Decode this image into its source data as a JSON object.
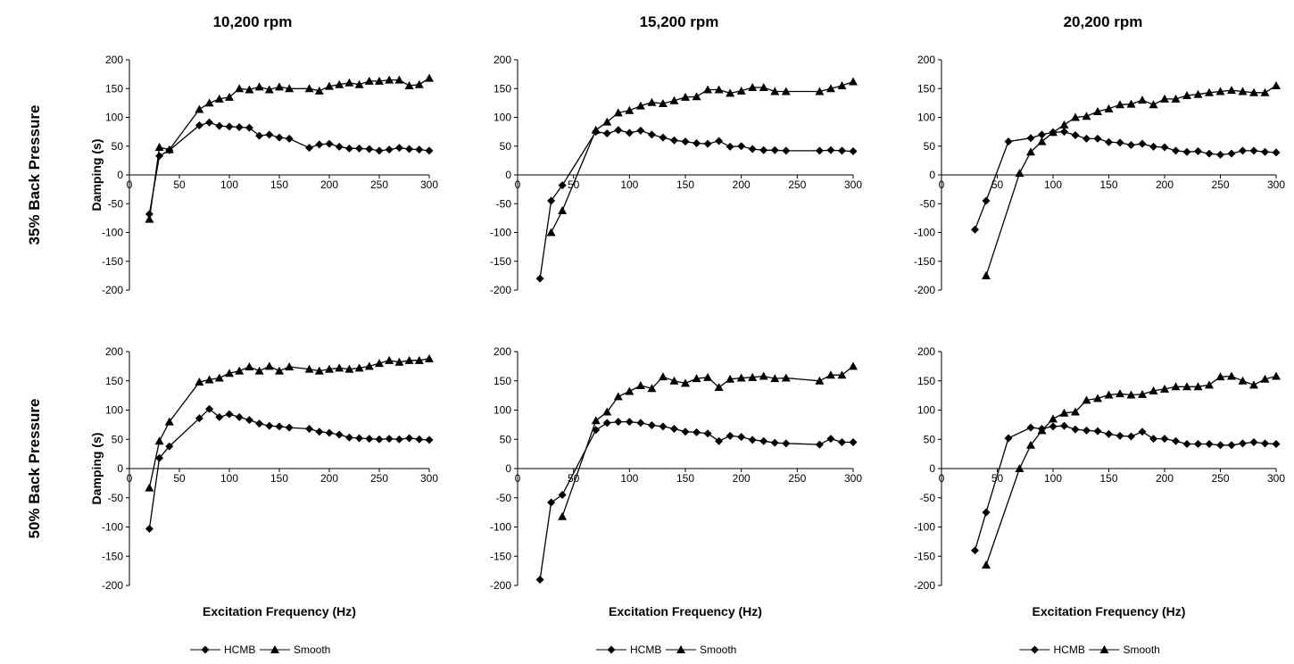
{
  "figure": {
    "column_titles": [
      "10,200 rpm",
      "15,200 rpm",
      "20,200 rpm"
    ],
    "row_titles": [
      "35% Back Pressure",
      "50% Back Pressure"
    ]
  },
  "chart_data": [
    {
      "type": "line",
      "row": 0,
      "col": 0,
      "title": "10,200 rpm",
      "xlabel": "",
      "ylabel": "Damping (s)",
      "xlim": [
        0,
        300
      ],
      "ylim": [
        -200,
        200
      ],
      "xticks": [
        0,
        50,
        100,
        150,
        200,
        250,
        300
      ],
      "yticks": [
        200,
        150,
        100,
        50,
        0,
        -50,
        -100,
        -150,
        -200
      ],
      "grid": false,
      "legend": "none",
      "series": [
        {
          "name": "HCMB",
          "marker": "diamond",
          "x": [
            20,
            30,
            40,
            70,
            80,
            90,
            100,
            110,
            120,
            130,
            140,
            150,
            160,
            180,
            190,
            200,
            210,
            220,
            230,
            240,
            250,
            260,
            270,
            280,
            290,
            300
          ],
          "y": [
            -68,
            33,
            43,
            86,
            91,
            85,
            84,
            83,
            82,
            68,
            70,
            65,
            63,
            47,
            53,
            54,
            49,
            46,
            46,
            45,
            42,
            44,
            47,
            45,
            44,
            42
          ]
        },
        {
          "name": "Smooth",
          "marker": "triangle",
          "x": [
            20,
            30,
            40,
            70,
            80,
            90,
            100,
            110,
            120,
            130,
            140,
            150,
            160,
            180,
            190,
            200,
            210,
            220,
            230,
            240,
            250,
            260,
            270,
            280,
            290,
            300
          ],
          "y": [
            -77,
            48,
            44,
            114,
            125,
            132,
            135,
            150,
            148,
            153,
            148,
            153,
            150,
            150,
            146,
            154,
            157,
            160,
            157,
            163,
            163,
            165,
            165,
            155,
            157,
            168
          ]
        }
      ]
    },
    {
      "type": "line",
      "row": 0,
      "col": 1,
      "title": "15,200 rpm",
      "xlabel": "",
      "ylabel": "",
      "xlim": [
        0,
        300
      ],
      "ylim": [
        -200,
        200
      ],
      "xticks": [
        0,
        50,
        100,
        150,
        200,
        250,
        300
      ],
      "yticks": [
        200,
        150,
        100,
        50,
        0,
        -50,
        -100,
        -150,
        -200
      ],
      "grid": false,
      "legend": "none",
      "series": [
        {
          "name": "HCMB",
          "marker": "diamond",
          "x": [
            20,
            30,
            40,
            70,
            80,
            90,
            100,
            110,
            120,
            130,
            140,
            150,
            160,
            170,
            180,
            190,
            200,
            210,
            220,
            230,
            240,
            270,
            280,
            290,
            300
          ],
          "y": [
            -180,
            -45,
            -18,
            75,
            72,
            78,
            73,
            77,
            70,
            65,
            60,
            58,
            55,
            54,
            59,
            49,
            50,
            45,
            43,
            43,
            42,
            42,
            43,
            42,
            41
          ]
        },
        {
          "name": "Smooth",
          "marker": "triangle",
          "x": [
            30,
            40,
            70,
            80,
            90,
            100,
            110,
            120,
            130,
            140,
            150,
            160,
            170,
            180,
            190,
            200,
            210,
            220,
            230,
            240,
            270,
            280,
            290,
            300
          ],
          "y": [
            -100,
            -62,
            78,
            92,
            108,
            112,
            120,
            126,
            124,
            129,
            135,
            136,
            148,
            148,
            142,
            146,
            152,
            152,
            145,
            145,
            145,
            150,
            155,
            162
          ]
        }
      ]
    },
    {
      "type": "line",
      "row": 0,
      "col": 2,
      "title": "20,200 rpm",
      "xlabel": "",
      "ylabel": "",
      "xlim": [
        0,
        300
      ],
      "ylim": [
        -200,
        200
      ],
      "xticks": [
        0,
        50,
        100,
        150,
        200,
        250,
        300
      ],
      "yticks": [
        200,
        150,
        100,
        50,
        0,
        -50,
        -100,
        -150,
        -200
      ],
      "grid": false,
      "legend": "none",
      "series": [
        {
          "name": "HCMB",
          "marker": "diamond",
          "x": [
            30,
            40,
            60,
            80,
            90,
            100,
            110,
            120,
            130,
            140,
            150,
            160,
            170,
            180,
            190,
            200,
            210,
            220,
            230,
            240,
            250,
            260,
            270,
            280,
            290,
            300
          ],
          "y": [
            -95,
            -45,
            58,
            64,
            70,
            74,
            75,
            69,
            63,
            63,
            57,
            56,
            52,
            54,
            49,
            48,
            42,
            40,
            41,
            37,
            35,
            37,
            42,
            42,
            40,
            39
          ]
        },
        {
          "name": "Smooth",
          "marker": "triangle",
          "x": [
            40,
            70,
            80,
            90,
            100,
            110,
            120,
            130,
            140,
            150,
            160,
            170,
            180,
            190,
            200,
            210,
            220,
            230,
            240,
            250,
            260,
            270,
            280,
            290,
            300
          ],
          "y": [
            -175,
            3,
            40,
            58,
            74,
            87,
            100,
            102,
            110,
            115,
            122,
            123,
            130,
            122,
            132,
            132,
            138,
            140,
            143,
            145,
            147,
            145,
            143,
            143,
            155
          ]
        }
      ]
    },
    {
      "type": "line",
      "row": 1,
      "col": 0,
      "title": "",
      "xlabel": "Excitation Frequency (Hz)",
      "ylabel": "Damping (s)",
      "xlim": [
        0,
        300
      ],
      "ylim": [
        -200,
        200
      ],
      "xticks": [
        0,
        50,
        100,
        150,
        200,
        250,
        300
      ],
      "yticks": [
        200,
        150,
        100,
        50,
        0,
        -50,
        -100,
        -150,
        -200
      ],
      "grid": false,
      "legend": "bottom",
      "series": [
        {
          "name": "HCMB",
          "marker": "diamond",
          "x": [
            20,
            30,
            40,
            70,
            80,
            90,
            100,
            110,
            120,
            130,
            140,
            150,
            160,
            180,
            190,
            200,
            210,
            220,
            230,
            240,
            250,
            260,
            270,
            280,
            290,
            300
          ],
          "y": [
            -103,
            18,
            38,
            86,
            102,
            88,
            93,
            88,
            83,
            77,
            73,
            72,
            70,
            68,
            63,
            61,
            58,
            53,
            52,
            51,
            50,
            51,
            50,
            52,
            50,
            49
          ]
        },
        {
          "name": "Smooth",
          "marker": "triangle",
          "x": [
            20,
            30,
            40,
            70,
            80,
            90,
            100,
            110,
            120,
            130,
            140,
            150,
            160,
            180,
            190,
            200,
            210,
            220,
            230,
            240,
            250,
            260,
            270,
            280,
            290,
            300
          ],
          "y": [
            -33,
            47,
            80,
            148,
            152,
            155,
            163,
            167,
            174,
            167,
            175,
            167,
            174,
            170,
            167,
            170,
            172,
            170,
            172,
            175,
            180,
            185,
            182,
            185,
            185,
            188
          ]
        }
      ]
    },
    {
      "type": "line",
      "row": 1,
      "col": 1,
      "title": "",
      "xlabel": "Excitation Frequency (Hz)",
      "ylabel": "",
      "xlim": [
        0,
        300
      ],
      "ylim": [
        -200,
        200
      ],
      "xticks": [
        0,
        50,
        100,
        150,
        200,
        250,
        300
      ],
      "yticks": [
        200,
        150,
        100,
        50,
        0,
        -50,
        -100,
        -150,
        -200
      ],
      "grid": false,
      "legend": "bottom",
      "series": [
        {
          "name": "HCMB",
          "marker": "diamond",
          "x": [
            20,
            30,
            40,
            70,
            80,
            90,
            100,
            110,
            120,
            130,
            140,
            150,
            160,
            170,
            180,
            190,
            200,
            210,
            220,
            230,
            240,
            270,
            280,
            290,
            300
          ],
          "y": [
            -190,
            -58,
            -45,
            66,
            78,
            80,
            80,
            78,
            74,
            72,
            68,
            63,
            62,
            60,
            47,
            56,
            54,
            49,
            47,
            44,
            43,
            41,
            51,
            45,
            45
          ]
        },
        {
          "name": "Smooth",
          "marker": "triangle",
          "x": [
            40,
            70,
            80,
            90,
            100,
            110,
            120,
            130,
            140,
            150,
            160,
            170,
            180,
            190,
            200,
            210,
            220,
            230,
            240,
            270,
            280,
            290,
            300
          ],
          "y": [
            -82,
            82,
            97,
            123,
            132,
            142,
            137,
            157,
            150,
            146,
            154,
            156,
            139,
            153,
            155,
            156,
            158,
            154,
            155,
            150,
            160,
            160,
            175
          ]
        }
      ]
    },
    {
      "type": "line",
      "row": 1,
      "col": 2,
      "title": "",
      "xlabel": "Excitation Frequency (Hz)",
      "ylabel": "",
      "xlim": [
        0,
        300
      ],
      "ylim": [
        -200,
        200
      ],
      "xticks": [
        0,
        50,
        100,
        150,
        200,
        250,
        300
      ],
      "yticks": [
        200,
        150,
        100,
        50,
        0,
        -50,
        -100,
        -150,
        -200
      ],
      "grid": false,
      "legend": "bottom",
      "series": [
        {
          "name": "HCMB",
          "marker": "diamond",
          "x": [
            30,
            40,
            60,
            80,
            90,
            100,
            110,
            120,
            130,
            140,
            150,
            160,
            170,
            180,
            190,
            200,
            210,
            220,
            230,
            240,
            250,
            260,
            270,
            280,
            290,
            300
          ],
          "y": [
            -140,
            -75,
            52,
            70,
            68,
            72,
            73,
            67,
            65,
            64,
            59,
            56,
            55,
            63,
            51,
            51,
            47,
            42,
            42,
            42,
            40,
            40,
            43,
            45,
            43,
            42
          ]
        },
        {
          "name": "Smooth",
          "marker": "triangle",
          "x": [
            40,
            70,
            80,
            90,
            100,
            110,
            120,
            130,
            140,
            150,
            160,
            170,
            180,
            190,
            200,
            210,
            220,
            230,
            240,
            250,
            260,
            270,
            280,
            290,
            300
          ],
          "y": [
            -165,
            0,
            40,
            65,
            85,
            95,
            97,
            117,
            120,
            126,
            128,
            126,
            127,
            133,
            136,
            140,
            140,
            140,
            143,
            157,
            158,
            150,
            143,
            153,
            158
          ]
        }
      ]
    }
  ]
}
